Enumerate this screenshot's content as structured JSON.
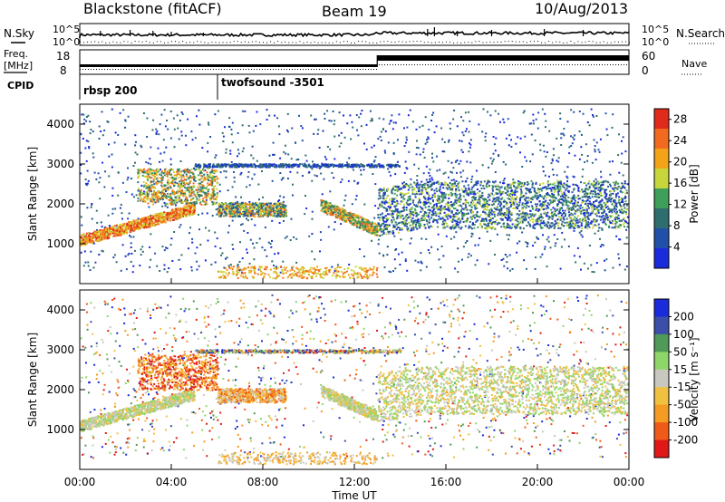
{
  "header": {
    "station": "Blackstone (fitACF)",
    "beam": "Beam 19",
    "date": "10/Aug/2013"
  },
  "side_labels": {
    "nsky": "N.Sky",
    "nsearch": "N.Search",
    "freq": "Freq.",
    "freq_unit": "[MHz]",
    "nave": "Nave",
    "cpid": "CPID"
  },
  "colors": {
    "power_scale": [
      "#1a2bdc",
      "#2150a8",
      "#2e6e6e",
      "#3f9e5a",
      "#c7d63a",
      "#f2a318",
      "#f26a1e",
      "#e02a1a"
    ],
    "velocity_scale": [
      "#1a2bdc",
      "#3b4fa8",
      "#4f9a58",
      "#8fd66a",
      "#c8c8c0",
      "#f0c040",
      "#f59a22",
      "#f05a18",
      "#e01818"
    ]
  },
  "chart_data": [
    {
      "type": "line",
      "name": "noise-panel",
      "title": "",
      "left_ticks": [
        "10^5",
        "10^0"
      ],
      "right_ticks": [
        "10^5",
        "10^0"
      ],
      "legend": [
        "N.Sky",
        "N.Search"
      ]
    },
    {
      "type": "line",
      "name": "freq-nave-panel",
      "left_ticks": [
        "18",
        "8"
      ],
      "right_ticks": [
        "60",
        "0"
      ],
      "freq_steps": [
        {
          "start": "00:00",
          "end": "13:00",
          "level": "low"
        },
        {
          "start": "13:00",
          "end": "24:00",
          "level": "high"
        }
      ]
    },
    {
      "type": "table",
      "name": "cpid-panel",
      "segments": [
        {
          "start": "00:00",
          "label": "rbsp 200"
        },
        {
          "start": "06:00",
          "label": "twofsound -3501"
        }
      ]
    },
    {
      "type": "heatmap",
      "name": "power-panel",
      "xlabel": "",
      "ylabel": "Slant Range [km]",
      "ylim": [
        0,
        4500
      ],
      "yticks": [
        1000,
        2000,
        3000,
        4000
      ],
      "colorbar_label": "Power [dB]",
      "colorbar_ticks": [
        4,
        8,
        12,
        16,
        20,
        24,
        28
      ],
      "colorbar_range": [
        0,
        30
      ]
    },
    {
      "type": "heatmap",
      "name": "velocity-panel",
      "xlabel": "Time UT",
      "ylabel": "Slant Range [km]",
      "ylim": [
        0,
        4500
      ],
      "yticks": [
        1000,
        2000,
        3000,
        4000
      ],
      "xticks": [
        "00:00",
        "04:00",
        "08:00",
        "12:00",
        "16:00",
        "20:00",
        "00:00"
      ],
      "colorbar_label": "Velocity [m s⁻¹]",
      "colorbar_ticks": [
        200,
        100,
        50,
        15,
        -15,
        -50,
        -100,
        -200
      ]
    }
  ]
}
